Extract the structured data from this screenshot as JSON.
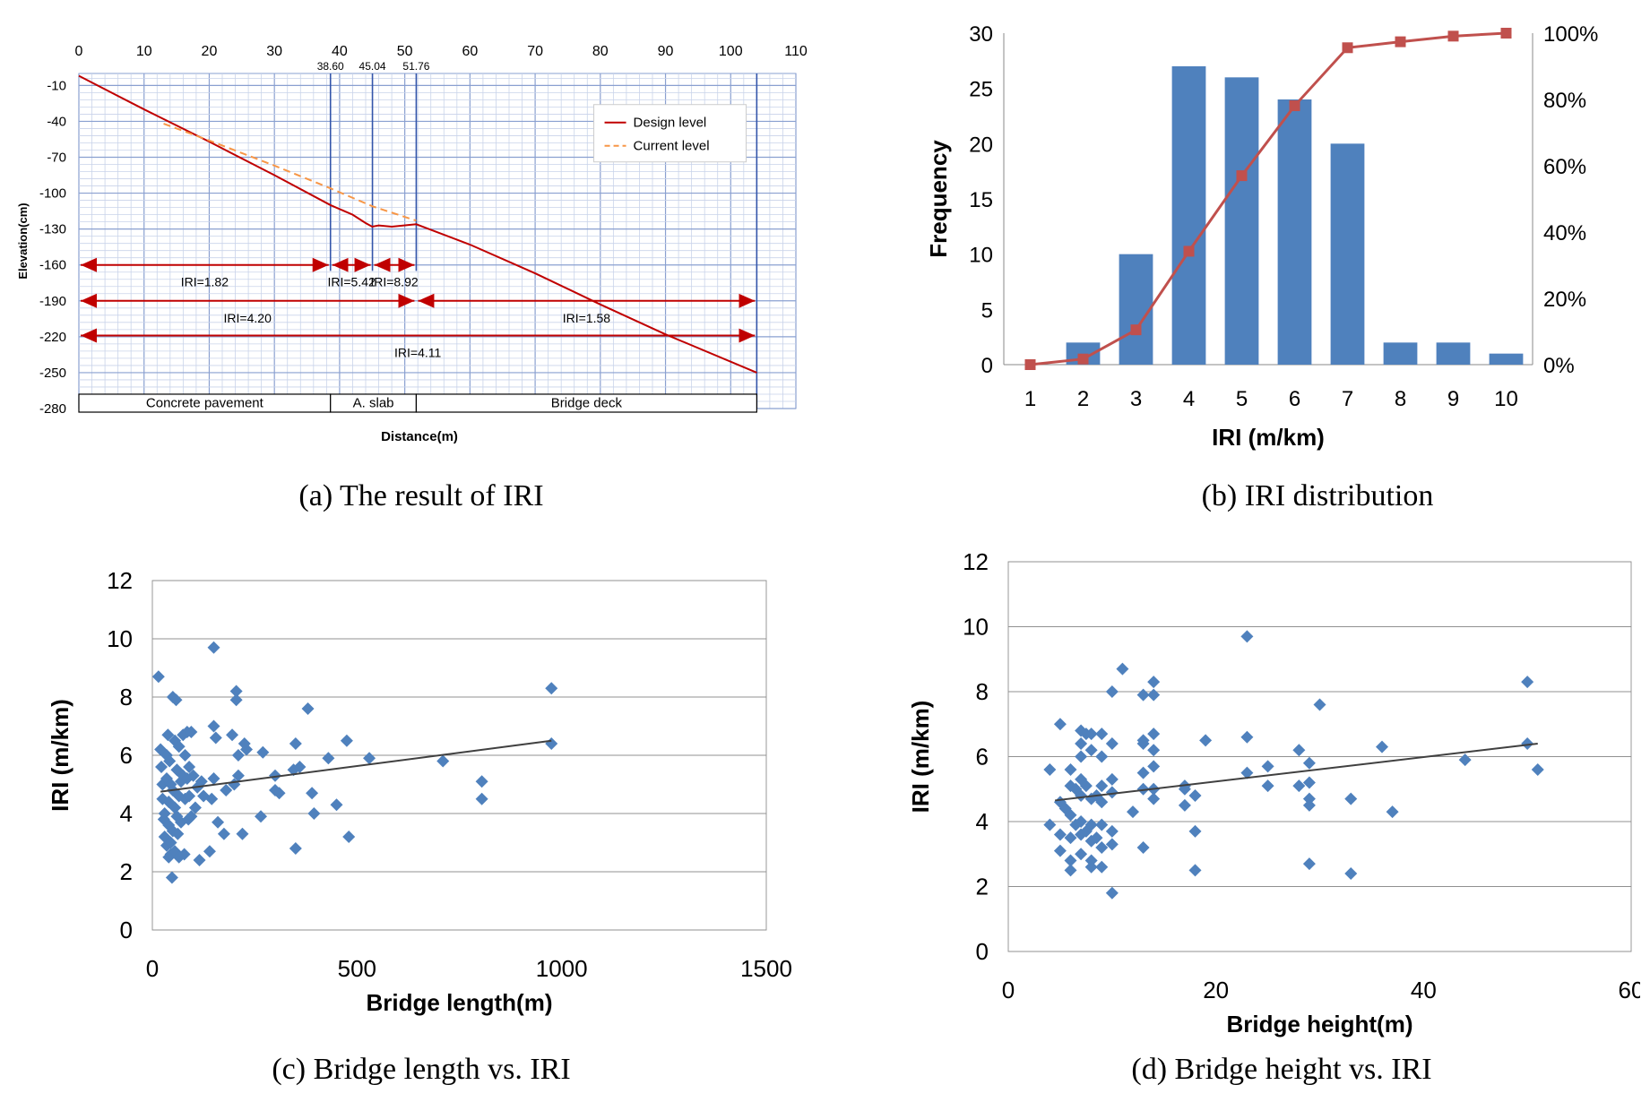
{
  "colors": {
    "design": "#c00000",
    "current": "#f79646",
    "bar": "#4f81bd",
    "cum": "#c0504d",
    "scatter": "#4f81bd",
    "grid_major": "#8aa0d0",
    "grid_minor": "#c9d3ea",
    "arrow": "#c00000",
    "trend": "#404040"
  },
  "chart_data": [
    {
      "id": "a",
      "type": "line",
      "caption": "(a) The result of IRI",
      "xlabel": "Distance(m)",
      "ylabel": "Elevation(cm)",
      "xlim": [
        0,
        110
      ],
      "ylim": [
        -280,
        0
      ],
      "xticks": [
        "0",
        "10",
        "20",
        "30",
        "40",
        "50",
        "60",
        "70",
        "80",
        "90",
        "100",
        "110"
      ],
      "yticks": [
        "-10",
        "-40",
        "-70",
        "-100",
        "-130",
        "-160",
        "-190",
        "-220",
        "-250",
        "-280"
      ],
      "station_labels": [
        "38.60",
        "45.04",
        "51.76"
      ],
      "series": [
        {
          "name": "Design level",
          "x": [
            0,
            10,
            20,
            30,
            38.6,
            42,
            44,
            45,
            46,
            48,
            51.76,
            60,
            70,
            80,
            90,
            104
          ],
          "y": [
            -2,
            -30,
            -57,
            -85,
            -110,
            -118,
            -125,
            -128,
            -127,
            -128,
            -126,
            -143,
            -167,
            -193,
            -218,
            -250
          ]
        },
        {
          "name": "Current level",
          "x": [
            13,
            20,
            30,
            38.6,
            45.04,
            51.76
          ],
          "y": [
            -42,
            -56,
            -77,
            -96,
            -111,
            -123
          ]
        }
      ],
      "segments": [
        {
          "label": "IRI=1.82",
          "from": 0,
          "to": 38.6,
          "y": -160
        },
        {
          "label": "IRI=5.42",
          "from": 38.6,
          "to": 45.04,
          "y": -160
        },
        {
          "label": "IRI=8.92",
          "from": 45.04,
          "to": 51.76,
          "y": -160
        },
        {
          "label": "IRI=4.20",
          "from": 0,
          "to": 51.76,
          "y": -190
        },
        {
          "label": "IRI=1.58",
          "from": 51.76,
          "to": 104,
          "y": -190
        },
        {
          "label": "IRI=4.11",
          "from": 0,
          "to": 104,
          "y": -219
        }
      ],
      "zones": [
        {
          "label": "Concrete pavement",
          "from": 0,
          "to": 38.6
        },
        {
          "label": "A. slab",
          "from": 38.6,
          "to": 51.76
        },
        {
          "label": "Bridge deck",
          "from": 51.76,
          "to": 104
        }
      ],
      "legend": [
        "Design level",
        "Current level"
      ]
    },
    {
      "id": "b",
      "type": "bar",
      "caption": "(b) IRI distribution",
      "xlabel": "IRI (m/km)",
      "ylabel": "Frequency",
      "categories": [
        "1",
        "2",
        "3",
        "4",
        "5",
        "6",
        "7",
        "8",
        "9",
        "10"
      ],
      "values": [
        0,
        2,
        10,
        27,
        26,
        24,
        20,
        2,
        2,
        1
      ],
      "cumulative_pct": [
        0,
        1.7,
        10.5,
        34.2,
        57.0,
        78.1,
        95.6,
        97.4,
        99.1,
        100
      ],
      "ylim": [
        0,
        30
      ],
      "yticks": [
        "0",
        "5",
        "10",
        "15",
        "20",
        "25",
        "30"
      ],
      "y2ticks": [
        "0%",
        "20%",
        "40%",
        "60%",
        "80%",
        "100%"
      ]
    },
    {
      "id": "c",
      "type": "scatter",
      "caption": "(c) Bridge length vs. IRI",
      "xlabel": "Bridge length(m)",
      "ylabel": "IRI (m/km)",
      "xlim": [
        0,
        1500
      ],
      "ylim": [
        0,
        12
      ],
      "xticks": [
        "0",
        "500",
        "1000",
        "1500"
      ],
      "yticks": [
        "0",
        "2",
        "4",
        "6",
        "8",
        "10",
        "12"
      ],
      "trend": [
        [
          20,
          4.75
        ],
        [
          975,
          6.5
        ]
      ],
      "points": [
        [
          15,
          8.7
        ],
        [
          20,
          6.2
        ],
        [
          22,
          5.6
        ],
        [
          25,
          5
        ],
        [
          25,
          4.5
        ],
        [
          28,
          3.8
        ],
        [
          30,
          3.2
        ],
        [
          30,
          4
        ],
        [
          35,
          6
        ],
        [
          35,
          5.2
        ],
        [
          35,
          2.9
        ],
        [
          38,
          6.7
        ],
        [
          40,
          3.6
        ],
        [
          40,
          4.4
        ],
        [
          40,
          2.5
        ],
        [
          42,
          5.8
        ],
        [
          45,
          5
        ],
        [
          45,
          3
        ],
        [
          45,
          2.6
        ],
        [
          48,
          1.8
        ],
        [
          50,
          8
        ],
        [
          50,
          4.8
        ],
        [
          50,
          3.4
        ],
        [
          55,
          6.5
        ],
        [
          55,
          4.2
        ],
        [
          55,
          2.7
        ],
        [
          58,
          7.9
        ],
        [
          60,
          5.5
        ],
        [
          60,
          3.9
        ],
        [
          62,
          3.3
        ],
        [
          65,
          6.3
        ],
        [
          65,
          4.6
        ],
        [
          65,
          2.5
        ],
        [
          70,
          5.1
        ],
        [
          70,
          3.7
        ],
        [
          75,
          6.7
        ],
        [
          75,
          5.3
        ],
        [
          78,
          2.6
        ],
        [
          80,
          4.5
        ],
        [
          80,
          6
        ],
        [
          85,
          6.8
        ],
        [
          85,
          5.2
        ],
        [
          88,
          3.8
        ],
        [
          90,
          5.6
        ],
        [
          90,
          4.6
        ],
        [
          95,
          6.8
        ],
        [
          95,
          3.9
        ],
        [
          100,
          5.3
        ],
        [
          105,
          4.2
        ],
        [
          110,
          4.9
        ],
        [
          115,
          2.4
        ],
        [
          120,
          5.1
        ],
        [
          125,
          4.6
        ],
        [
          140,
          2.7
        ],
        [
          145,
          4.5
        ],
        [
          150,
          7
        ],
        [
          150,
          9.7
        ],
        [
          150,
          5.2
        ],
        [
          155,
          6.6
        ],
        [
          160,
          3.7
        ],
        [
          175,
          3.3
        ],
        [
          180,
          4.8
        ],
        [
          195,
          6.7
        ],
        [
          200,
          5
        ],
        [
          205,
          8.2
        ],
        [
          205,
          7.9
        ],
        [
          210,
          5.3
        ],
        [
          210,
          6
        ],
        [
          220,
          3.3
        ],
        [
          225,
          6.4
        ],
        [
          230,
          6.2
        ],
        [
          265,
          3.9
        ],
        [
          270,
          6.1
        ],
        [
          300,
          5.3
        ],
        [
          300,
          4.8
        ],
        [
          310,
          4.7
        ],
        [
          345,
          5.5
        ],
        [
          350,
          2.8
        ],
        [
          350,
          6.4
        ],
        [
          360,
          5.6
        ],
        [
          380,
          7.6
        ],
        [
          390,
          4.7
        ],
        [
          395,
          4
        ],
        [
          430,
          5.9
        ],
        [
          450,
          4.3
        ],
        [
          475,
          6.5
        ],
        [
          480,
          3.2
        ],
        [
          530,
          5.9
        ],
        [
          710,
          5.8
        ],
        [
          805,
          5.1
        ],
        [
          805,
          4.5
        ],
        [
          975,
          6.4
        ],
        [
          975,
          8.3
        ]
      ]
    },
    {
      "id": "d",
      "type": "scatter",
      "caption": "(d) Bridge height vs. IRI",
      "xlabel": "Bridge height(m)",
      "ylabel": "IRI (m/km)",
      "xlim": [
        0,
        60
      ],
      "ylim": [
        0,
        12
      ],
      "xticks": [
        "0",
        "20",
        "40",
        "60"
      ],
      "yticks": [
        "0",
        "2",
        "4",
        "6",
        "8",
        "10",
        "12"
      ],
      "trend": [
        [
          4.5,
          4.65
        ],
        [
          51,
          6.4
        ]
      ],
      "points": [
        [
          4,
          5.6
        ],
        [
          4,
          3.9
        ],
        [
          5,
          7
        ],
        [
          5,
          4.6
        ],
        [
          5,
          3.6
        ],
        [
          5,
          3.1
        ],
        [
          5.5,
          4.4
        ],
        [
          6,
          5.6
        ],
        [
          6,
          5.1
        ],
        [
          6,
          4.2
        ],
        [
          6,
          3.5
        ],
        [
          6,
          2.8
        ],
        [
          6,
          2.5
        ],
        [
          6.5,
          5
        ],
        [
          6.5,
          3.9
        ],
        [
          7,
          6.8
        ],
        [
          7,
          6.4
        ],
        [
          7,
          6
        ],
        [
          7,
          5.3
        ],
        [
          7,
          4.8
        ],
        [
          7,
          4
        ],
        [
          7,
          3.6
        ],
        [
          7,
          3
        ],
        [
          7.5,
          6.7
        ],
        [
          7.5,
          5.1
        ],
        [
          7.5,
          3.7
        ],
        [
          8,
          6.7
        ],
        [
          8,
          6.2
        ],
        [
          8,
          4.7
        ],
        [
          8,
          3.9
        ],
        [
          8,
          3.4
        ],
        [
          8,
          2.8
        ],
        [
          8,
          2.6
        ],
        [
          8.5,
          4.8
        ],
        [
          8.5,
          3.5
        ],
        [
          9,
          6.7
        ],
        [
          9,
          6
        ],
        [
          9,
          5.1
        ],
        [
          9,
          4.6
        ],
        [
          9,
          3.9
        ],
        [
          9,
          3.2
        ],
        [
          9,
          2.6
        ],
        [
          10,
          8
        ],
        [
          10,
          6.4
        ],
        [
          10,
          5.3
        ],
        [
          10,
          4.9
        ],
        [
          10,
          3.7
        ],
        [
          10,
          3.3
        ],
        [
          10,
          1.8
        ],
        [
          11,
          8.7
        ],
        [
          12,
          4.3
        ],
        [
          13,
          7.9
        ],
        [
          13,
          6.4
        ],
        [
          13,
          5.5
        ],
        [
          13,
          5
        ],
        [
          13,
          3.2
        ],
        [
          13,
          6.5
        ],
        [
          14,
          8.3
        ],
        [
          14,
          7.9
        ],
        [
          14,
          6.7
        ],
        [
          14,
          6.2
        ],
        [
          14,
          5.7
        ],
        [
          14,
          5
        ],
        [
          14,
          4.7
        ],
        [
          17,
          5.1
        ],
        [
          17,
          5
        ],
        [
          17,
          4.5
        ],
        [
          18,
          4.8
        ],
        [
          18,
          3.7
        ],
        [
          18,
          2.5
        ],
        [
          19,
          6.5
        ],
        [
          23,
          9.7
        ],
        [
          23,
          6.6
        ],
        [
          23,
          5.5
        ],
        [
          25,
          5.7
        ],
        [
          25,
          5.1
        ],
        [
          28,
          6.2
        ],
        [
          28,
          5.1
        ],
        [
          29,
          5.2
        ],
        [
          29,
          5.8
        ],
        [
          29,
          4.7
        ],
        [
          29,
          4.5
        ],
        [
          29,
          2.7
        ],
        [
          30,
          7.6
        ],
        [
          33,
          4.7
        ],
        [
          33,
          2.4
        ],
        [
          36,
          6.3
        ],
        [
          37,
          4.3
        ],
        [
          44,
          5.9
        ],
        [
          50,
          8.3
        ],
        [
          50,
          6.4
        ],
        [
          51,
          5.6
        ]
      ]
    }
  ]
}
